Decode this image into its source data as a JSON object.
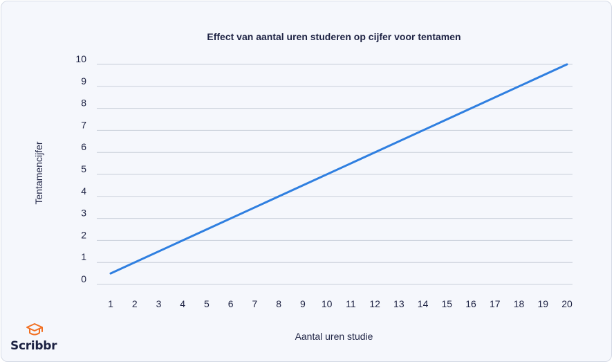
{
  "colors": {
    "background": "#f5f7fc",
    "text": "#1d2243",
    "grid": "#c9cfda",
    "line": "#2f7fe0",
    "logo_accent": "#f26f21"
  },
  "brand": {
    "name": "Scribbr",
    "icon": "graduation-cap-icon"
  },
  "chart_data": {
    "type": "line",
    "title": "Effect van aantal uren studeren op cijfer voor tentamen",
    "xlabel": "Aantal uren studie",
    "ylabel": "Tentamencijfer",
    "x_ticks": [
      1,
      2,
      3,
      4,
      5,
      6,
      7,
      8,
      9,
      10,
      11,
      12,
      13,
      14,
      15,
      16,
      17,
      18,
      19,
      20
    ],
    "y_ticks": [
      0,
      1,
      2,
      3,
      4,
      5,
      6,
      7,
      8,
      9,
      10
    ],
    "xlim": [
      1,
      20
    ],
    "ylim": [
      0,
      10
    ],
    "grid": "horizontal",
    "series": [
      {
        "x": [
          1,
          20
        ],
        "y": [
          0.5,
          10
        ]
      }
    ]
  }
}
